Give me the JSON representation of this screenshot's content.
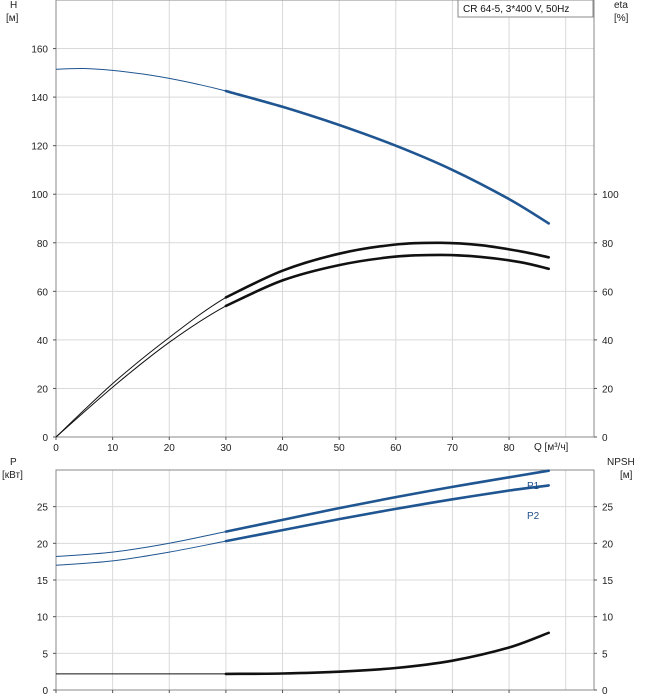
{
  "legend": {
    "text": "CR 64-5, 3*400 V, 50Hz"
  },
  "colors": {
    "blue": "#1f5591",
    "black": "#111111",
    "grid": "#d9d9d9"
  },
  "chart_data": [
    {
      "type": "line",
      "name": "head_and_efficiency",
      "xlabel": "Q [м³/ч]",
      "xlim": [
        0,
        95
      ],
      "xticks": [
        0,
        10,
        20,
        30,
        40,
        50,
        60,
        70,
        80
      ],
      "left_axis": {
        "label_top": "H",
        "label_unit": "[м]",
        "ylim": [
          0,
          180
        ],
        "ticks": [
          0,
          20,
          40,
          60,
          80,
          100,
          120,
          140,
          160
        ]
      },
      "right_axis": {
        "label_top": "eta",
        "label_unit": "[%]",
        "ylim": [
          0,
          180
        ],
        "ticks": [
          0,
          20,
          40,
          60,
          80,
          100
        ]
      },
      "grid": true,
      "series": [
        {
          "key": "H",
          "color": "#1f5591",
          "op_from": 30,
          "points": [
            [
              0,
              151.5
            ],
            [
              5,
              151.8
            ],
            [
              10,
              151
            ],
            [
              15,
              149.6
            ],
            [
              20,
              147.7
            ],
            [
              25,
              145.3
            ],
            [
              30,
              142.5
            ],
            [
              40,
              136
            ],
            [
              50,
              128.5
            ],
            [
              60,
              120
            ],
            [
              70,
              110
            ],
            [
              80,
              98
            ],
            [
              87,
              88
            ]
          ]
        },
        {
          "key": "eta_pump",
          "color": "#111111",
          "op_from": 30,
          "points": [
            [
              0,
              0
            ],
            [
              10,
              22
            ],
            [
              20,
              41
            ],
            [
              30,
              57.5
            ],
            [
              40,
              68.5
            ],
            [
              50,
              75.5
            ],
            [
              60,
              79.3
            ],
            [
              68,
              80
            ],
            [
              75,
              79
            ],
            [
              82,
              76.5
            ],
            [
              87,
              74
            ]
          ]
        },
        {
          "key": "eta_total",
          "color": "#111111",
          "op_from": 30,
          "points": [
            [
              0,
              0
            ],
            [
              10,
              20.5
            ],
            [
              20,
              39
            ],
            [
              30,
              54
            ],
            [
              40,
              64.5
            ],
            [
              50,
              70.8
            ],
            [
              60,
              74.3
            ],
            [
              68,
              75
            ],
            [
              75,
              74.2
            ],
            [
              82,
              72
            ],
            [
              87,
              69.3
            ]
          ]
        }
      ]
    },
    {
      "type": "line",
      "name": "power_and_npsh",
      "xlim": [
        0,
        95
      ],
      "xticks": [
        0,
        10,
        20,
        30,
        40,
        50,
        60,
        70,
        80
      ],
      "left_axis": {
        "label_top": "P",
        "label_unit": "[кВт]",
        "ylim": [
          0,
          30
        ],
        "ticks": [
          0,
          5,
          10,
          15,
          20,
          25
        ]
      },
      "right_axis": {
        "label_top": "NPSH",
        "label_unit": "[м]",
        "ylim": [
          0,
          30
        ],
        "ticks": [
          0,
          5,
          10,
          15,
          20,
          25
        ]
      },
      "grid": true,
      "series": [
        {
          "key": "P1",
          "name": "P1",
          "color": "#1f5591",
          "op_from": 30,
          "points": [
            [
              0,
              18.2
            ],
            [
              10,
              18.8
            ],
            [
              20,
              20
            ],
            [
              30,
              21.6
            ],
            [
              40,
              23.2
            ],
            [
              50,
              24.8
            ],
            [
              60,
              26.3
            ],
            [
              70,
              27.7
            ],
            [
              80,
              29
            ],
            [
              87,
              29.9
            ]
          ]
        },
        {
          "key": "P2",
          "name": "P2",
          "color": "#1f5591",
          "op_from": 30,
          "points": [
            [
              0,
              17
            ],
            [
              10,
              17.6
            ],
            [
              20,
              18.8
            ],
            [
              30,
              20.3
            ],
            [
              40,
              21.8
            ],
            [
              50,
              23.3
            ],
            [
              60,
              24.7
            ],
            [
              70,
              26
            ],
            [
              80,
              27.2
            ],
            [
              87,
              27.9
            ]
          ]
        },
        {
          "key": "NPSH",
          "color": "#111111",
          "op_from": 30,
          "points": [
            [
              0,
              2.2
            ],
            [
              30,
              2.2
            ],
            [
              40,
              2.25
            ],
            [
              50,
              2.5
            ],
            [
              60,
              3
            ],
            [
              70,
              4
            ],
            [
              80,
              5.8
            ],
            [
              87,
              7.8
            ]
          ]
        }
      ]
    }
  ]
}
